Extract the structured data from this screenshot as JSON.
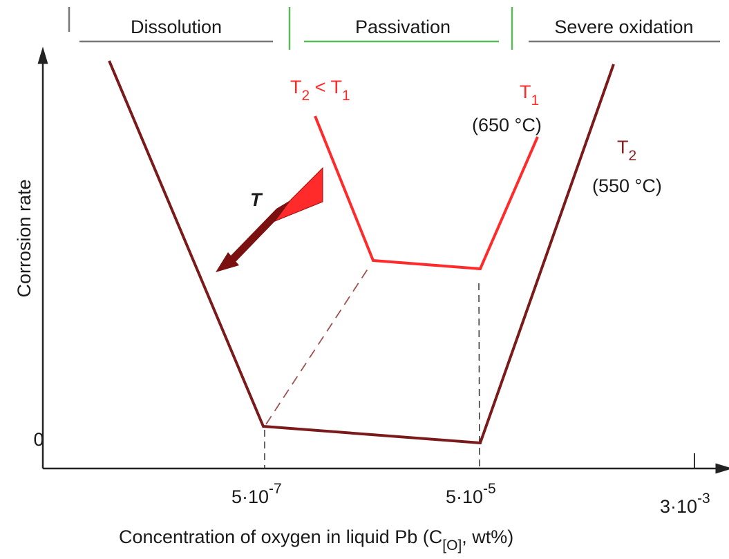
{
  "regions": [
    {
      "label": "Dissolution"
    },
    {
      "label": "Passivation"
    },
    {
      "label": "Severe oxidation"
    }
  ],
  "y_axis": {
    "label": "Corrosion rate",
    "zero": "0"
  },
  "x_axis": {
    "label": {
      "text": "Concentration of oxygen in liquid Pb (C",
      "subscript": "[O]",
      "end": ", wt%)"
    },
    "ticks": [
      {
        "base": "5·10",
        "exponent": "-7"
      },
      {
        "base": "5·10",
        "exponent": "-5"
      },
      {
        "base": "3·10",
        "exponent": "-3"
      }
    ]
  },
  "annotations": {
    "comparison": [
      "T",
      "2",
      " <  T",
      "1"
    ],
    "t1": {
      "symbol": "T",
      "index": "1",
      "temperature": "(650 °C)"
    },
    "t2": {
      "symbol": "T",
      "index": "2",
      "temperature": "(550 °C)"
    },
    "arrow_label": "T"
  }
}
